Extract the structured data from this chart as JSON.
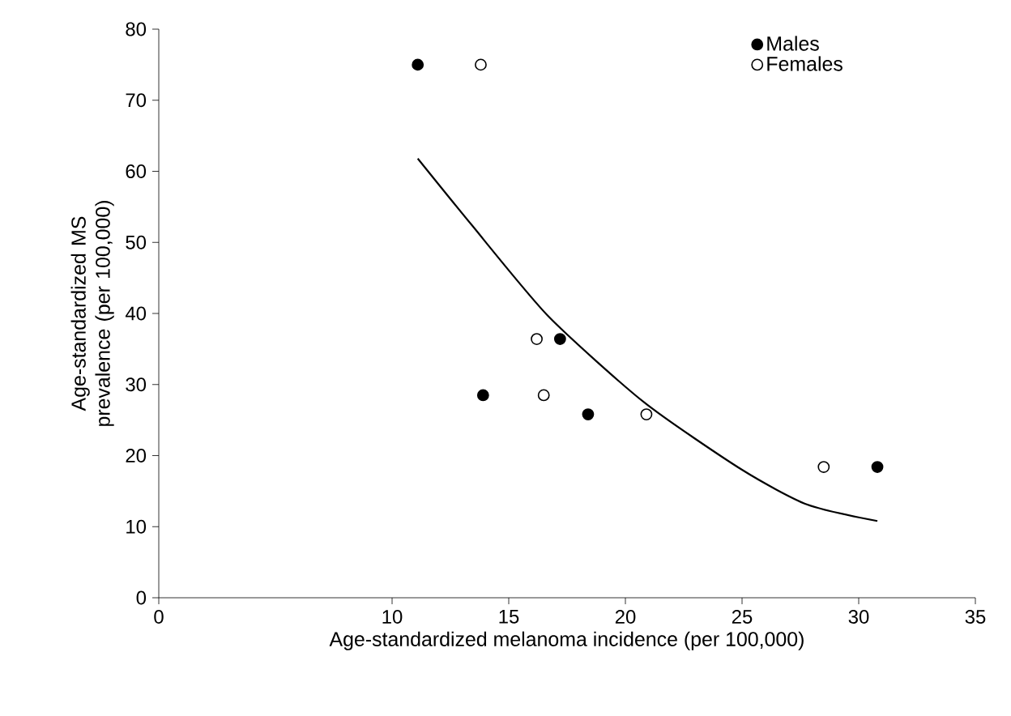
{
  "chart_data": {
    "type": "scatter",
    "xlabel": "Age-standardized melanoma incidence (per 100,000)",
    "ylabel": "Age-standardized MS prevalence (per 100,000)",
    "xlim": [
      0,
      35
    ],
    "xticks": [
      0,
      10,
      15,
      20,
      25,
      30,
      35
    ],
    "ylim": [
      0,
      80
    ],
    "yticks": [
      0,
      10,
      20,
      30,
      40,
      50,
      60,
      70,
      80
    ],
    "legend": "top right",
    "grid": false,
    "series": [
      {
        "name": "Males",
        "color": "#000000",
        "marker": "circle",
        "x": [
          11.1,
          13.9,
          17.2,
          18.4,
          30.8
        ],
        "values": [
          75,
          28.5,
          36.4,
          25.8,
          18.4
        ]
      },
      {
        "name": "Females",
        "color": "#ffffff",
        "marker": "circle",
        "x": [
          13.8,
          16.2,
          16.5,
          20.9,
          28.5
        ],
        "values": [
          75,
          36.4,
          28.5,
          25.8,
          18.4
        ]
      },
      {
        "type": "line",
        "color": "#000000",
        "marker": "none",
        "line_style": "solid",
        "x": [
          11.1,
          13.4,
          16.7,
          20.8,
          25.0,
          27.8,
          30.8
        ],
        "values": [
          61.8,
          52.5,
          39.6,
          27.5,
          18.0,
          13.1,
          10.8
        ]
      }
    ]
  }
}
